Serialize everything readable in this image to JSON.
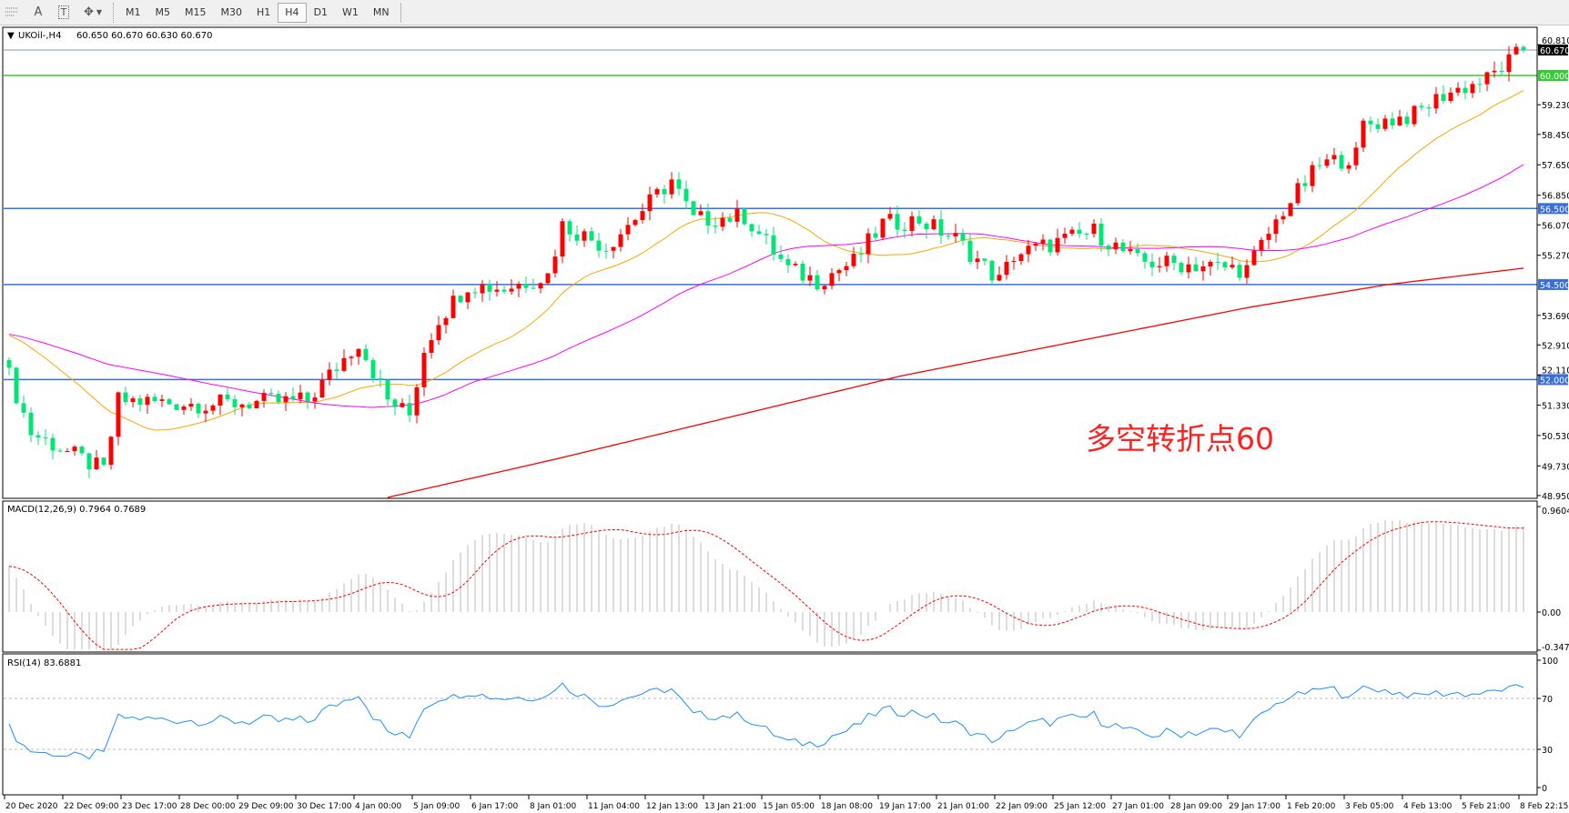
{
  "toolbar": {
    "tools": [
      {
        "icon": "line-studies-icon"
      },
      {
        "icon": "text-icon",
        "label": "A"
      },
      {
        "icon": "text-label-icon",
        "label": "T"
      },
      {
        "icon": "arrows-icon"
      }
    ],
    "timeframes": [
      "M1",
      "M5",
      "M15",
      "M30",
      "H1",
      "H4",
      "D1",
      "W1",
      "MN"
    ],
    "selected_timeframe": "H4"
  },
  "chart": {
    "symbol_header": "UKOil-,H4",
    "ohlc": "60.650 60.670 60.630 60.670",
    "annotation": "多空转折点60",
    "colors": {
      "bull": "#ff0000",
      "bear": "#00e676",
      "ma_fast": "#ffa500",
      "ma_mid": "#ff00ff",
      "ma_slow": "#ff0000",
      "level_blue": "#3a6fd8",
      "level_green": "#33cc33",
      "bid": "#8899aa"
    }
  },
  "chart_data": [
    {
      "type": "candlestick",
      "symbol": "UKOil-",
      "timeframe": "H4",
      "ylim": [
        48.9,
        61.2
      ],
      "price_ticks": [
        "60.810",
        "59.230",
        "58.450",
        "57.650",
        "56.850",
        "56.070",
        "55.270",
        "53.690",
        "52.910",
        "52.110",
        "51.330",
        "50.530",
        "49.730",
        "48.950"
      ],
      "time_ticks": [
        "20 Dec 2020",
        "22 Dec 09:00",
        "23 Dec 17:00",
        "28 Dec 00:00",
        "29 Dec 09:00",
        "30 Dec 17:00",
        "4 Jan 00:00",
        "5 Jan 09:00",
        "6 Jan 17:00",
        "8 Jan 01:00",
        "11 Jan 04:00",
        "12 Jan 13:00",
        "13 Jan 21:00",
        "15 Jan 05:00",
        "18 Jan 08:00",
        "19 Jan 17:00",
        "21 Jan 01:00",
        "22 Jan 09:00",
        "25 Jan 12:00",
        "27 Jan 01:00",
        "28 Jan 09:00",
        "29 Jan 17:00",
        "1 Feb 20:00",
        "3 Feb 05:00",
        "4 Feb 13:00",
        "5 Feb 21:00",
        "8 Feb 22:15"
      ],
      "close_path": [
        [
          0,
          52.1
        ],
        [
          3,
          50.6
        ],
        [
          13,
          49.6
        ],
        [
          15,
          51.45
        ],
        [
          27,
          51.35
        ],
        [
          41,
          51.45
        ],
        [
          48,
          53.0
        ],
        [
          52,
          51.45
        ],
        [
          55,
          51.07
        ],
        [
          57,
          52.8
        ],
        [
          59,
          53.6
        ],
        [
          63,
          54.5
        ],
        [
          68,
          54.4
        ],
        [
          74,
          54.75
        ],
        [
          76,
          56.07
        ],
        [
          82,
          55.5
        ],
        [
          87,
          56.46
        ],
        [
          91,
          57.25
        ],
        [
          94,
          56.2
        ],
        [
          101,
          56.3
        ],
        [
          107,
          54.9
        ],
        [
          111,
          54.6
        ],
        [
          116,
          55.1
        ],
        [
          120,
          56.1
        ],
        [
          125,
          56.2
        ],
        [
          130,
          55.7
        ],
        [
          136,
          54.6
        ],
        [
          138,
          55.27
        ],
        [
          149,
          55.9
        ],
        [
          155,
          55.1
        ],
        [
          164,
          55.0
        ],
        [
          170,
          54.9
        ],
        [
          175,
          56.46
        ],
        [
          180,
          57.64
        ],
        [
          185,
          57.9
        ],
        [
          186,
          58.7
        ],
        [
          193,
          58.96
        ],
        [
          197,
          59.5
        ],
        [
          203,
          59.9
        ],
        [
          208,
          60.67
        ]
      ],
      "ma_slow_path": [
        [
          52,
          48.9
        ],
        [
          100,
          49.9
        ],
        [
          150,
          51.0
        ],
        [
          200,
          52.1
        ],
        [
          250,
          53.0
        ],
        [
          300,
          53.9
        ],
        [
          340,
          54.5
        ],
        [
          379,
          54.93
        ]
      ],
      "levels": [
        {
          "price": 60.67,
          "label": "60.670",
          "kind": "bid"
        },
        {
          "price": 60.0,
          "label": "60.000",
          "kind": "green"
        },
        {
          "price": 56.5,
          "label": "56.500",
          "kind": "blue"
        },
        {
          "price": 54.5,
          "label": "54.500",
          "kind": "blue"
        },
        {
          "price": 52.0,
          "label": "52.000",
          "kind": "blue"
        }
      ]
    },
    {
      "type": "bar",
      "title": "MACD(12,26,9) 0.7964 0.7689",
      "ylim": [
        -0.3473,
        0.9604
      ],
      "ticks": [
        "0.9604",
        "0.00",
        "-0.3473"
      ]
    },
    {
      "type": "line",
      "title": "RSI(14) 83.6881",
      "ylim": [
        0,
        100
      ],
      "ticks": [
        "100",
        "70",
        "30",
        "0"
      ],
      "levels": [
        70,
        30
      ]
    }
  ]
}
